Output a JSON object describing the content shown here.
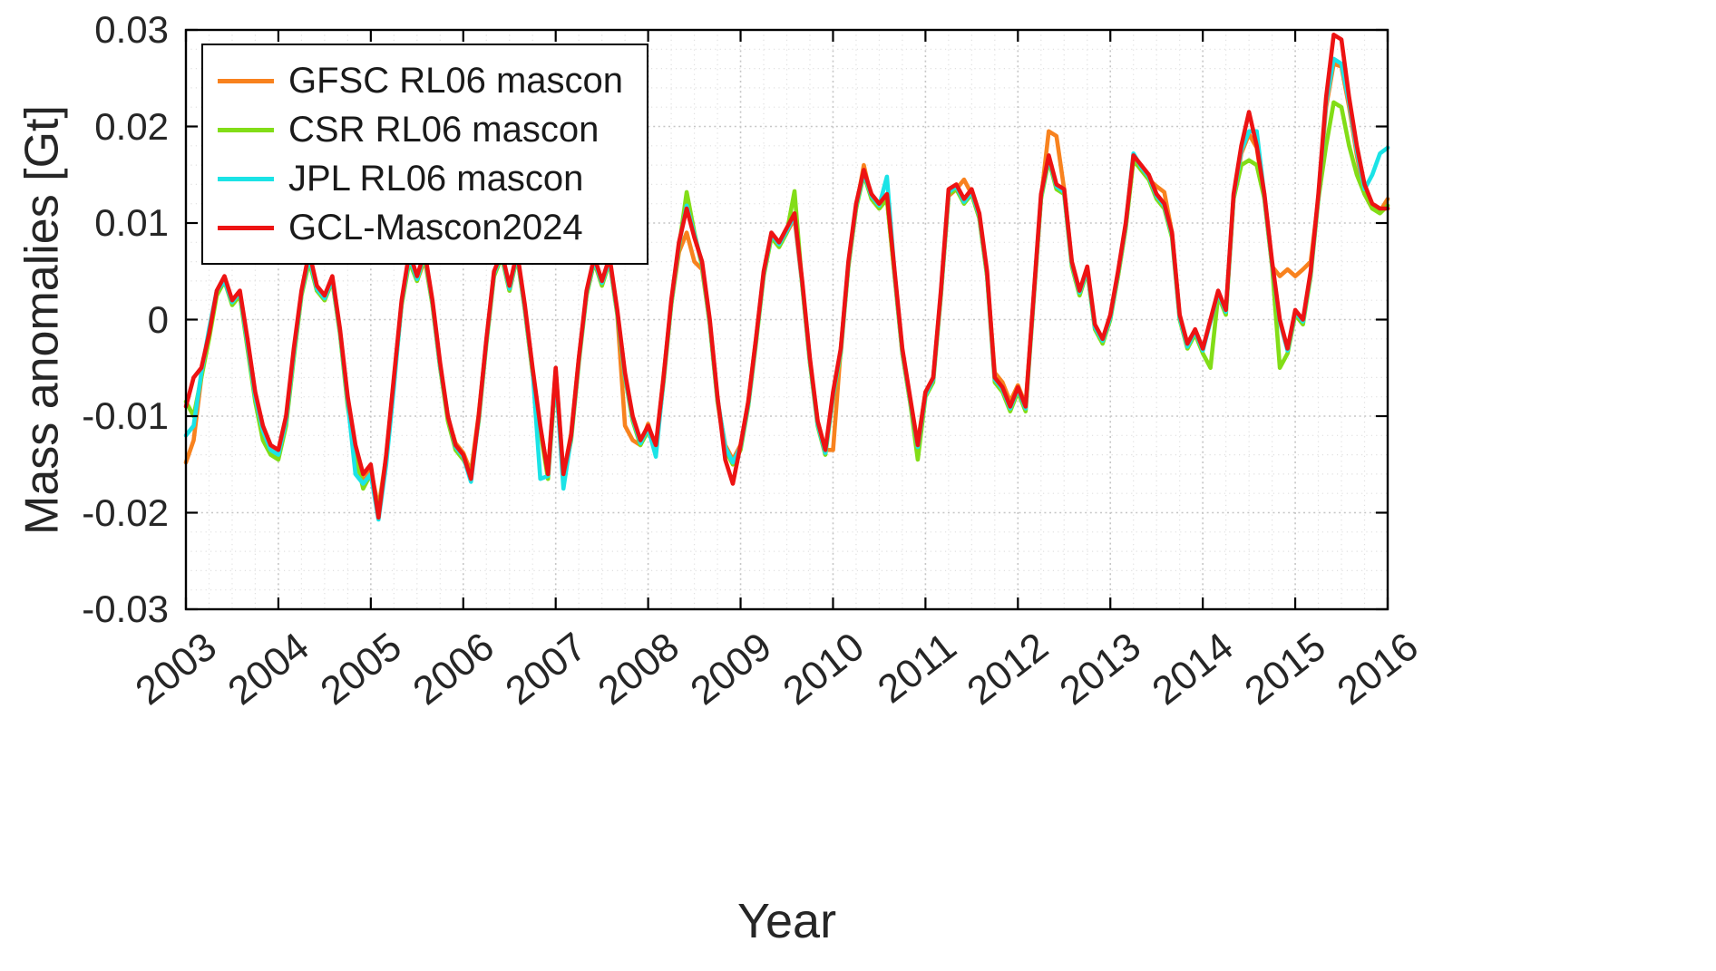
{
  "figure": {
    "background": "#ffffff",
    "axis_color": "#000000",
    "tick_label_color": "#262626",
    "grid_style": "dotted major and minor grid, light gray",
    "legend_position": "top-left inside plot"
  },
  "chart_data": {
    "type": "line",
    "title": "",
    "xlabel": "Year",
    "ylabel": "Mass anomalies [Gt]",
    "xlim": [
      2003,
      2016
    ],
    "ylim": [
      -0.03,
      0.03
    ],
    "xtick_values": [
      2003,
      2004,
      2005,
      2006,
      2007,
      2008,
      2009,
      2010,
      2011,
      2012,
      2013,
      2014,
      2015,
      2016
    ],
    "xtick_labels": [
      "2003",
      "2004",
      "2005",
      "2006",
      "2007",
      "2008",
      "2009",
      "2010",
      "2011",
      "2012",
      "2013",
      "2014",
      "2015",
      "2016"
    ],
    "ytick_values": [
      -0.03,
      -0.02,
      -0.01,
      0,
      0.01,
      0.02,
      0.03
    ],
    "ytick_labels": [
      "-0.03",
      "-0.02",
      "-0.01",
      "0",
      "0.01",
      "0.02",
      "0.03"
    ],
    "x_start": 2003,
    "x_step_years": 0.0833333,
    "n_points": 157,
    "grid": "on",
    "legend_entries": [
      "GFSC RL06 mascon",
      "CSR RL06 mascon",
      "JPL RL06 mascon",
      "GCL-Mascon2024"
    ],
    "series": [
      {
        "name": "GFSC RL06 mascon",
        "color": "#f8821e",
        "values": [
          -0.0148,
          -0.0125,
          -0.006,
          -0.0012,
          0.0028,
          0.0042,
          0.0016,
          0.0026,
          -0.0028,
          -0.0082,
          -0.0118,
          -0.0138,
          -0.0142,
          -0.0108,
          -0.0038,
          0.0026,
          0.0062,
          0.003,
          0.002,
          0.004,
          -0.0014,
          -0.0088,
          -0.0138,
          -0.0168,
          -0.0155,
          -0.0195,
          -0.0142,
          -0.0062,
          0.0016,
          0.0062,
          0.004,
          0.0062,
          0.0016,
          -0.005,
          -0.0102,
          -0.0128,
          -0.0138,
          -0.0158,
          -0.0098,
          -0.0022,
          0.0046,
          0.0066,
          0.003,
          0.0066,
          0.001,
          -0.0055,
          -0.0112,
          -0.0158,
          -0.0052,
          -0.0162,
          -0.0118,
          -0.004,
          0.0026,
          0.006,
          0.0036,
          0.006,
          0.0006,
          -0.011,
          -0.0125,
          -0.013,
          -0.0108,
          -0.0135,
          -0.0058,
          0.0016,
          0.007,
          0.009,
          0.006,
          0.0052,
          -0.0004,
          -0.0084,
          -0.013,
          -0.0145,
          -0.013,
          -0.0085,
          -0.002,
          0.0046,
          0.0086,
          0.0076,
          0.009,
          0.0105,
          0.0036,
          -0.0044,
          -0.0105,
          -0.0135,
          -0.0135,
          -0.003,
          0.0055,
          0.0115,
          0.016,
          0.0125,
          0.0115,
          0.0125,
          0.0045,
          -0.0035,
          -0.0085,
          -0.0128,
          -0.0075,
          -0.006,
          0.0025,
          0.0128,
          0.0135,
          0.0145,
          0.013,
          0.0105,
          0.0045,
          -0.0055,
          -0.0065,
          -0.0085,
          -0.0068,
          -0.0088,
          0.0018,
          0.0125,
          0.0195,
          0.019,
          0.0135,
          0.0058,
          0.0028,
          0.005,
          -0.0008,
          -0.002,
          0.0002,
          0.0045,
          0.0095,
          0.0168,
          0.0155,
          0.0145,
          0.0138,
          0.0132,
          0.009,
          0.0002,
          -0.0028,
          -0.0012,
          -0.003,
          -0.0002,
          0.0028,
          0.0008,
          0.0125,
          0.0172,
          0.0192,
          0.0178,
          0.0125,
          0.0055,
          0.0045,
          0.0052,
          0.0045,
          0.0052,
          0.006,
          0.0125,
          0.022,
          0.0265,
          0.0262,
          0.022,
          0.017,
          0.013,
          0.0115,
          0.0112,
          0.0125
        ]
      },
      {
        "name": "CSR RL06 mascon",
        "color": "#82dd17",
        "values": [
          -0.0085,
          -0.01,
          -0.006,
          -0.002,
          0.0025,
          0.004,
          0.0015,
          0.0025,
          -0.003,
          -0.0085,
          -0.0125,
          -0.014,
          -0.0145,
          -0.011,
          -0.004,
          0.0025,
          0.006,
          0.003,
          0.002,
          0.004,
          -0.0015,
          -0.009,
          -0.014,
          -0.0175,
          -0.016,
          -0.02,
          -0.0145,
          -0.0065,
          0.0015,
          0.006,
          0.004,
          0.0065,
          0.0015,
          -0.005,
          -0.0105,
          -0.0135,
          -0.0145,
          -0.016,
          -0.0105,
          -0.0025,
          0.0045,
          0.0065,
          0.003,
          0.0065,
          0.001,
          -0.0055,
          -0.0115,
          -0.0165,
          -0.006,
          -0.0165,
          -0.0125,
          -0.0045,
          0.0025,
          0.006,
          0.0035,
          0.006,
          0.0005,
          -0.006,
          -0.0105,
          -0.013,
          -0.0115,
          -0.0135,
          -0.0065,
          0.0015,
          0.0075,
          0.0132,
          0.009,
          0.0055,
          -0.0005,
          -0.0085,
          -0.0135,
          -0.015,
          -0.0135,
          -0.009,
          -0.0025,
          0.0045,
          0.0085,
          0.0075,
          0.009,
          0.0133,
          0.0035,
          -0.0045,
          -0.011,
          -0.014,
          -0.008,
          -0.0035,
          0.0055,
          0.0115,
          0.015,
          0.0125,
          0.0115,
          0.0125,
          0.0045,
          -0.0035,
          -0.0085,
          -0.0145,
          -0.008,
          -0.0065,
          0.0025,
          0.013,
          0.0135,
          0.012,
          0.013,
          0.0105,
          0.0045,
          -0.0065,
          -0.0075,
          -0.0095,
          -0.0075,
          -0.0095,
          0.0015,
          0.0125,
          0.0165,
          0.0135,
          0.013,
          0.0055,
          0.0025,
          0.005,
          -0.001,
          -0.0025,
          0.0,
          0.0045,
          0.0095,
          0.0165,
          0.0155,
          0.0145,
          0.0125,
          0.0115,
          0.0085,
          0.0,
          -0.003,
          -0.0015,
          -0.0035,
          -0.005,
          0.0025,
          0.0005,
          0.0125,
          0.016,
          0.0165,
          0.016,
          0.0125,
          0.0055,
          -0.005,
          -0.0035,
          0.0005,
          -0.0005,
          0.0045,
          0.0125,
          0.018,
          0.0225,
          0.022,
          0.018,
          0.015,
          0.013,
          0.0115,
          0.011,
          0.0118
        ]
      },
      {
        "name": "JPL RL06 mascon",
        "color": "#1be3e6",
        "values": [
          -0.012,
          -0.011,
          -0.0055,
          -0.001,
          0.003,
          0.004,
          0.0018,
          0.0028,
          -0.0025,
          -0.008,
          -0.0115,
          -0.0135,
          -0.014,
          -0.0105,
          -0.0035,
          0.0028,
          0.0065,
          0.0032,
          0.0022,
          0.0042,
          -0.0012,
          -0.0085,
          -0.016,
          -0.017,
          -0.016,
          -0.0207,
          -0.015,
          -0.007,
          0.0018,
          0.0065,
          0.0042,
          0.0068,
          0.0018,
          -0.0048,
          -0.01,
          -0.0132,
          -0.0142,
          -0.0168,
          -0.0102,
          -0.0022,
          0.0048,
          0.0068,
          0.0032,
          0.0068,
          0.0012,
          -0.0052,
          -0.0165,
          -0.0162,
          -0.0055,
          -0.0175,
          -0.0122,
          -0.0042,
          0.0028,
          0.0062,
          0.0038,
          0.0062,
          0.0008,
          -0.0058,
          -0.0102,
          -0.0128,
          -0.0112,
          -0.0142,
          -0.0062,
          0.0018,
          0.0078,
          0.0118,
          0.0088,
          0.0058,
          -0.0002,
          -0.0082,
          -0.0132,
          -0.0148,
          -0.0132,
          -0.0088,
          -0.0022,
          0.0048,
          0.0088,
          0.0078,
          0.0092,
          0.0108,
          0.0038,
          -0.0042,
          -0.0108,
          -0.0138,
          -0.0078,
          -0.0032,
          0.0058,
          0.0118,
          0.0152,
          0.0128,
          0.0118,
          0.0148,
          0.0048,
          -0.0032,
          -0.0082,
          -0.0132,
          -0.0078,
          -0.0062,
          0.0028,
          0.0132,
          0.0138,
          0.0122,
          0.0132,
          0.0108,
          0.0048,
          -0.0062,
          -0.0072,
          -0.0092,
          -0.0072,
          -0.0092,
          0.0018,
          0.0128,
          0.0168,
          0.0138,
          0.0132,
          0.0058,
          0.0028,
          0.0052,
          -0.0008,
          -0.0022,
          0.0002,
          0.0048,
          0.0098,
          0.0172,
          0.0158,
          0.0148,
          0.0128,
          0.0118,
          0.0088,
          0.0002,
          -0.0028,
          -0.0012,
          -0.0032,
          -0.0002,
          0.0028,
          0.0008,
          0.0128,
          0.0175,
          0.0195,
          0.0195,
          0.0128,
          0.0058,
          -0.0002,
          -0.0032,
          0.0008,
          -0.0002,
          0.0048,
          0.0128,
          0.0225,
          0.027,
          0.0265,
          0.0225,
          0.0175,
          0.0135,
          0.015,
          0.0172,
          0.0178
        ]
      },
      {
        "name": "GCL-Mascon2024",
        "color": "#ed1313",
        "values": [
          -0.009,
          -0.006,
          -0.005,
          -0.0015,
          0.003,
          0.0045,
          0.002,
          0.003,
          -0.002,
          -0.0075,
          -0.011,
          -0.013,
          -0.0135,
          -0.01,
          -0.003,
          0.003,
          0.007,
          0.0035,
          0.0025,
          0.0045,
          -0.001,
          -0.008,
          -0.013,
          -0.016,
          -0.015,
          -0.0205,
          -0.014,
          -0.006,
          0.002,
          0.007,
          0.0045,
          0.007,
          0.002,
          -0.0045,
          -0.01,
          -0.013,
          -0.014,
          -0.0165,
          -0.01,
          -0.002,
          0.005,
          0.007,
          0.0035,
          0.007,
          0.0015,
          -0.005,
          -0.011,
          -0.016,
          -0.005,
          -0.016,
          -0.012,
          -0.004,
          0.003,
          0.0065,
          0.004,
          0.0065,
          0.001,
          -0.0055,
          -0.01,
          -0.0125,
          -0.011,
          -0.013,
          -0.006,
          0.002,
          0.008,
          0.0115,
          0.0085,
          0.006,
          0.0,
          -0.008,
          -0.0145,
          -0.017,
          -0.013,
          -0.0085,
          -0.002,
          0.005,
          0.009,
          0.008,
          0.0095,
          0.011,
          0.004,
          -0.004,
          -0.0105,
          -0.0135,
          -0.0075,
          -0.003,
          0.006,
          0.012,
          0.0155,
          0.013,
          0.012,
          0.013,
          0.005,
          -0.003,
          -0.008,
          -0.013,
          -0.0075,
          -0.006,
          0.003,
          0.0135,
          0.014,
          0.0125,
          0.0135,
          0.011,
          0.005,
          -0.006,
          -0.007,
          -0.009,
          -0.007,
          -0.009,
          0.002,
          0.013,
          0.017,
          0.014,
          0.0135,
          0.006,
          0.003,
          0.0055,
          -0.0005,
          -0.002,
          0.0005,
          0.005,
          0.01,
          0.017,
          0.016,
          0.015,
          0.013,
          0.012,
          0.009,
          0.0005,
          -0.0025,
          -0.001,
          -0.003,
          0.0,
          0.003,
          0.001,
          0.013,
          0.018,
          0.0215,
          0.018,
          0.013,
          0.006,
          0.0,
          -0.003,
          0.001,
          0.0,
          0.005,
          0.013,
          0.023,
          0.0295,
          0.029,
          0.023,
          0.018,
          0.014,
          0.012,
          0.0115,
          0.0115
        ]
      }
    ]
  }
}
